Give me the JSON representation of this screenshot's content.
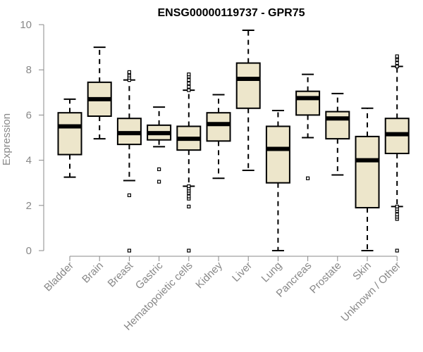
{
  "chart_data": {
    "type": "boxplot",
    "title": "ENSG00000119737 - GPR75",
    "xlabel": "",
    "ylabel": "Expression",
    "ylim": [
      0,
      10
    ],
    "yticks": [
      0,
      2,
      4,
      6,
      8,
      10
    ],
    "categories": [
      "Bladder",
      "Brain",
      "Breast",
      "Gastric",
      "Hematopoietic cells",
      "Kidney",
      "Liver",
      "Lung",
      "Pancreas",
      "Prostate",
      "Skin",
      "Unknown / Other"
    ],
    "boxes": [
      {
        "name": "Bladder",
        "whisker_low": 3.25,
        "q1": 4.25,
        "median": 5.5,
        "q3": 6.1,
        "whisker_high": 6.7,
        "outliers": []
      },
      {
        "name": "Brain",
        "whisker_low": 4.95,
        "q1": 5.95,
        "median": 6.7,
        "q3": 7.45,
        "whisker_high": 9.0,
        "outliers": []
      },
      {
        "name": "Breast",
        "whisker_low": 3.1,
        "q1": 4.7,
        "median": 5.2,
        "q3": 5.85,
        "whisker_high": 7.55,
        "outliers": [
          0.0,
          2.45,
          7.55,
          7.65,
          7.75,
          7.85,
          7.9
        ]
      },
      {
        "name": "Gastric",
        "whisker_low": 4.6,
        "q1": 4.9,
        "median": 5.2,
        "q3": 5.55,
        "whisker_high": 6.35,
        "outliers": [
          3.05,
          3.6
        ]
      },
      {
        "name": "Hematopoietic cells",
        "whisker_low": 2.85,
        "q1": 4.45,
        "median": 4.95,
        "q3": 5.5,
        "whisker_high": 7.1,
        "outliers": [
          0.0,
          1.95,
          2.3,
          2.4,
          2.55,
          2.65,
          2.75,
          2.85,
          7.1,
          7.25,
          7.4,
          7.55,
          7.7,
          7.8
        ]
      },
      {
        "name": "Kidney",
        "whisker_low": 3.2,
        "q1": 4.85,
        "median": 5.6,
        "q3": 6.1,
        "whisker_high": 6.9,
        "outliers": []
      },
      {
        "name": "Liver",
        "whisker_low": 3.55,
        "q1": 6.3,
        "median": 7.6,
        "q3": 8.3,
        "whisker_high": 9.75,
        "outliers": []
      },
      {
        "name": "Lung",
        "whisker_low": 0.0,
        "q1": 3.0,
        "median": 4.5,
        "q3": 5.5,
        "whisker_high": 6.2,
        "outliers": []
      },
      {
        "name": "Pancreas",
        "whisker_low": 5.0,
        "q1": 6.0,
        "median": 6.75,
        "q3": 7.05,
        "whisker_high": 7.8,
        "outliers": [
          3.2
        ]
      },
      {
        "name": "Prostate",
        "whisker_low": 3.35,
        "q1": 4.95,
        "median": 5.85,
        "q3": 6.15,
        "whisker_high": 6.95,
        "outliers": []
      },
      {
        "name": "Skin",
        "whisker_low": 0.0,
        "q1": 1.9,
        "median": 4.0,
        "q3": 5.05,
        "whisker_high": 6.3,
        "outliers": []
      },
      {
        "name": "Unknown / Other",
        "whisker_low": 1.95,
        "q1": 4.3,
        "median": 5.15,
        "q3": 5.85,
        "whisker_high": 8.15,
        "outliers": [
          0.0,
          1.4,
          1.5,
          1.6,
          1.75,
          1.85,
          1.95,
          8.15,
          8.3,
          8.45,
          8.55,
          8.6
        ]
      }
    ],
    "box_fill": "#ede6cb",
    "box_stroke": "#000000",
    "grid": false
  }
}
